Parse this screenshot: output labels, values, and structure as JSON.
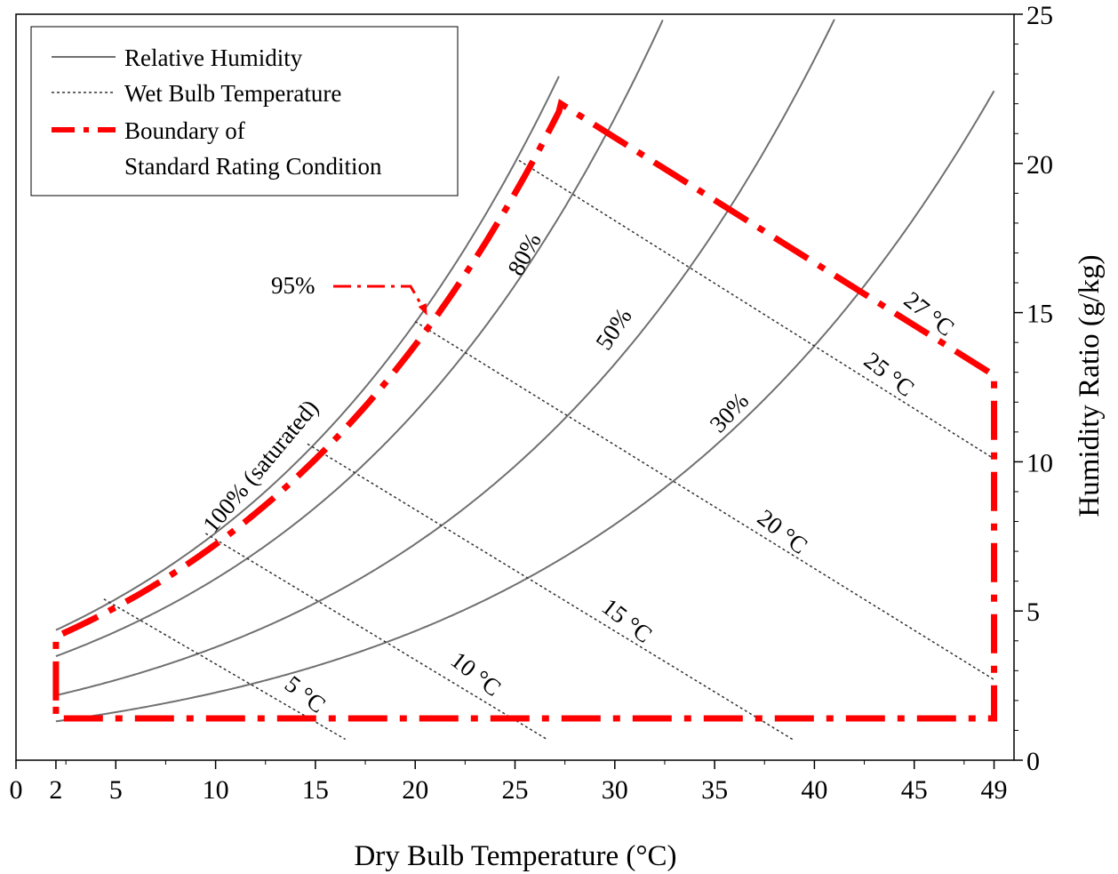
{
  "chart_data": {
    "type": "line",
    "title": "",
    "xlabel": "Dry Bulb Temperature (°C)",
    "ylabel": "Humidity Ratio (g/kg)",
    "xlim": [
      0,
      50
    ],
    "ylim": [
      0,
      25
    ],
    "x_ticks": [
      0,
      2,
      5,
      10,
      15,
      20,
      25,
      30,
      35,
      40,
      45,
      49
    ],
    "y_ticks": [
      0,
      5,
      10,
      15,
      20,
      25
    ],
    "y_axis_position": "right",
    "grid": false,
    "legend": {
      "position": "top-left",
      "entries": [
        {
          "label": "Relative Humidity",
          "style": "solid-gray"
        },
        {
          "label": "Wet Bulb Temperature",
          "style": "dotted-dark"
        },
        {
          "label": "Boundary of",
          "label_line2": "Standard Rating Condition",
          "style": "dash-dot-red"
        }
      ]
    },
    "colors": {
      "rh": "#707070",
      "wet_bulb": "#333333",
      "boundary": "#ff0000"
    },
    "relative_humidity_series": [
      {
        "label": "100% (saturated)",
        "rh": 1.0,
        "x_range": [
          2,
          27.2
        ]
      },
      {
        "label": "95%",
        "rh": 0.95,
        "x_range": [
          2,
          27.5
        ]
      },
      {
        "label": "80%",
        "rh": 0.8,
        "x_range": [
          2,
          32.4
        ]
      },
      {
        "label": "50%",
        "rh": 0.5,
        "x_range": [
          2,
          41.0
        ]
      },
      {
        "label": "30%",
        "rh": 0.3,
        "x_range": [
          2,
          49.0
        ]
      }
    ],
    "wet_bulb_series": [
      {
        "label": "5 °C",
        "x": [
          4.4,
          16.5
        ],
        "y": [
          5.4,
          0.7
        ]
      },
      {
        "label": "10 °C",
        "x": [
          9.5,
          26.6
        ],
        "y": [
          7.6,
          0.7
        ]
      },
      {
        "label": "15 °C",
        "x": [
          14.6,
          38.9
        ],
        "y": [
          10.6,
          0.7
        ]
      },
      {
        "label": "20 °C",
        "x": [
          20.0,
          49.0
        ],
        "y": [
          14.7,
          2.7
        ]
      },
      {
        "label": "25 °C",
        "x": [
          25.2,
          49.0
        ],
        "y": [
          20.1,
          10.1
        ]
      },
      {
        "label": "27 °C",
        "x": [],
        "y": []
      }
    ],
    "boundary": {
      "x": [
        2,
        2,
        27.3,
        49,
        49,
        2,
        2
      ],
      "y": [
        2.0,
        4.0,
        22.0,
        12.9,
        1.4,
        1.4,
        2.0
      ]
    },
    "annotation": {
      "label": "95%",
      "arrow_to": [
        20.6,
        14.9
      ]
    }
  }
}
